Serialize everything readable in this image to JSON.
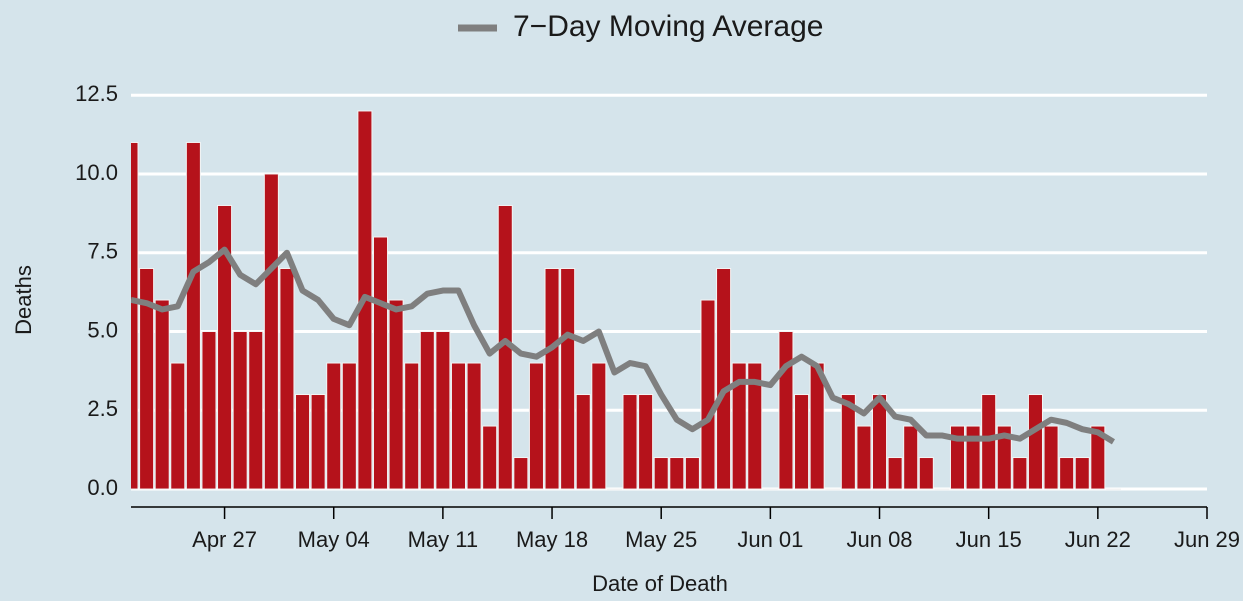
{
  "chart_data": {
    "type": "bar",
    "xlabel": "Date of Death",
    "ylabel": "Deaths",
    "x": [
      "Apr 21",
      "Apr 22",
      "Apr 23",
      "Apr 24",
      "Apr 25",
      "Apr 26",
      "Apr 27",
      "Apr 28",
      "Apr 29",
      "Apr 30",
      "May 1",
      "May 2",
      "May 3",
      "May 4",
      "May 5",
      "May 6",
      "May 7",
      "May 8",
      "May 9",
      "May 10",
      "May 11",
      "May 12",
      "May 13",
      "May 14",
      "May 15",
      "May 16",
      "May 17",
      "May 18",
      "May 19",
      "May 20",
      "May 21",
      "May 22",
      "May 23",
      "May 24",
      "May 25",
      "May 26",
      "May 27",
      "May 28",
      "May 29",
      "May 30",
      "May 31",
      "Jun 1",
      "Jun 2",
      "Jun 3",
      "Jun 4",
      "Jun 5",
      "Jun 6",
      "Jun 7",
      "Jun 8",
      "Jun 9",
      "Jun 10",
      "Jun 11",
      "Jun 12",
      "Jun 13",
      "Jun 14",
      "Jun 15",
      "Jun 16",
      "Jun 17",
      "Jun 18",
      "Jun 19",
      "Jun 20",
      "Jun 21",
      "Jun 22",
      "Jun 23"
    ],
    "series": [
      {
        "type": "bar",
        "color": "#b5121b",
        "values": [
          11,
          7,
          6,
          4,
          11,
          5,
          9,
          5,
          5,
          10,
          7,
          3,
          3,
          4,
          4,
          12,
          8,
          6,
          4,
          5,
          5,
          4,
          4,
          2,
          9,
          1,
          4,
          7,
          7,
          3,
          4,
          0,
          3,
          3,
          1,
          1,
          1,
          6,
          7,
          4,
          4,
          0,
          5,
          3,
          4,
          0,
          3,
          2,
          3,
          1,
          2,
          1,
          0,
          2,
          2,
          3,
          2,
          1,
          3,
          2,
          1,
          1,
          2,
          0
        ]
      },
      {
        "type": "line",
        "name": "7−Day Moving Average",
        "color": "#7f7f7f",
        "values": [
          6.0,
          5.9,
          5.7,
          5.8,
          6.9,
          7.2,
          7.6,
          6.8,
          6.5,
          7.0,
          7.5,
          6.3,
          6.0,
          5.4,
          5.2,
          6.1,
          5.9,
          5.7,
          5.8,
          6.2,
          6.3,
          6.3,
          5.2,
          4.3,
          4.7,
          4.3,
          4.2,
          4.5,
          4.9,
          4.7,
          5.0,
          3.7,
          4.0,
          3.9,
          3.0,
          2.2,
          1.9,
          2.2,
          3.1,
          3.4,
          3.4,
          3.3,
          3.9,
          4.2,
          3.9,
          2.9,
          2.7,
          2.4,
          2.9,
          2.3,
          2.2,
          1.7,
          1.7,
          1.6,
          1.6,
          1.6,
          1.7,
          1.6,
          1.9,
          2.2,
          2.1,
          1.9,
          1.8,
          1.5
        ]
      }
    ],
    "xlim": [
      "Apr 21",
      "Jun 29"
    ],
    "xticks": [
      "Apr 27",
      "May 04",
      "May 11",
      "May 18",
      "May 25",
      "Jun 01",
      "Jun 08",
      "Jun 15",
      "Jun 22",
      "Jun 29"
    ],
    "ylim": [
      -0.57,
      13.3
    ],
    "yticks": [
      {
        "value": 0,
        "label": "0.0"
      },
      2.5,
      {
        "value": 5,
        "label": "5.0"
      },
      7.5,
      {
        "value": 10,
        "label": "10.0"
      },
      12.5
    ],
    "grid": true,
    "legend": "top"
  }
}
